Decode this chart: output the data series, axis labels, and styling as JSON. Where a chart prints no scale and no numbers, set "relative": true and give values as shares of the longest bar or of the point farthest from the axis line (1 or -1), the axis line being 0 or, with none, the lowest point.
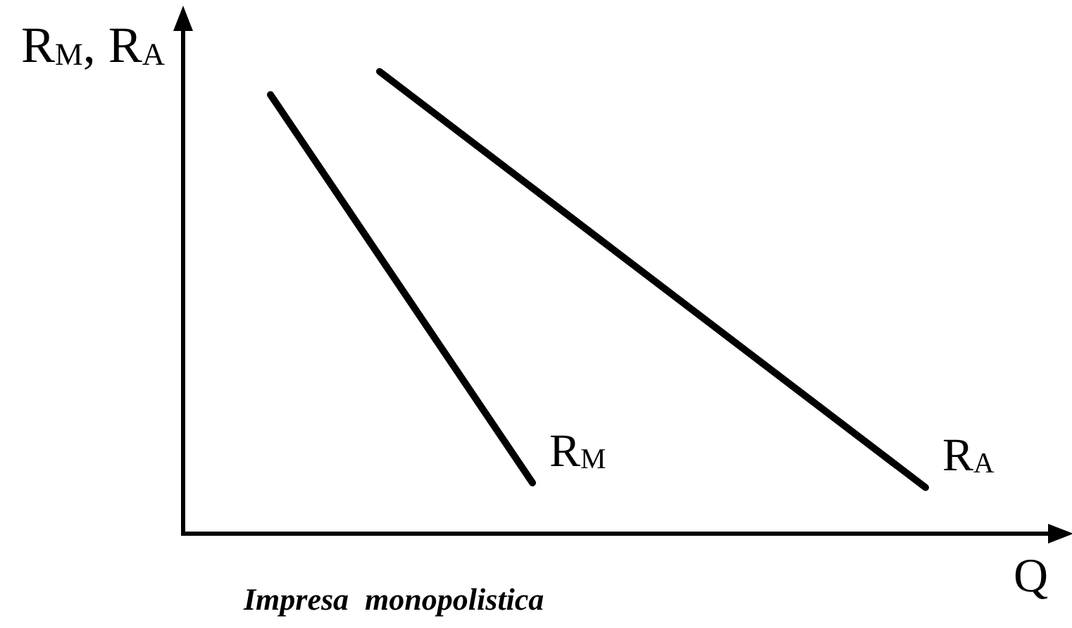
{
  "chart_data": {
    "type": "line",
    "relative": true,
    "ylabel": "R$_{M}$, R$_{A}$",
    "xlabel": "Q",
    "annotations": [
      "Impresa monopolistica"
    ],
    "categories": [
      null,
      null,
      null,
      null,
      null,
      null,
      null,
      null,
      null,
      null,
      null,
      null,
      null,
      null,
      null,
      null,
      null,
      null,
      null,
      null,
      null,
      null,
      null,
      null,
      null,
      null,
      null,
      null,
      null,
      null,
      null,
      null,
      null,
      null,
      null,
      null,
      null,
      null,
      null,
      null,
      null
    ],
    "series": [
      {
        "name": "R$_{M}$",
        "color": "#000000",
        "values": [
          null,
          null,
          null,
          null,
          0.95,
          null,
          null,
          null,
          null,
          null,
          null,
          null,
          null,
          null,
          null,
          null,
          0.11,
          null,
          null,
          null,
          null,
          null,
          null,
          null,
          null,
          null,
          null,
          null,
          null,
          null,
          null,
          null,
          null,
          null,
          null,
          null,
          null,
          null,
          null,
          null,
          null
        ]
      },
      {
        "name": "R$_{A}$",
        "color": "#000000",
        "values": [
          null,
          null,
          null,
          null,
          null,
          null,
          null,
          null,
          null,
          1,
          null,
          null,
          null,
          null,
          null,
          null,
          null,
          null,
          null,
          null,
          null,
          null,
          null,
          null,
          null,
          null,
          null,
          null,
          null,
          null,
          null,
          null,
          null,
          null,
          0.1,
          null,
          null,
          null,
          null,
          null,
          null
        ]
      }
    ],
    "tick_labels": false,
    "marker": "none",
    "line_style": "solid"
  }
}
